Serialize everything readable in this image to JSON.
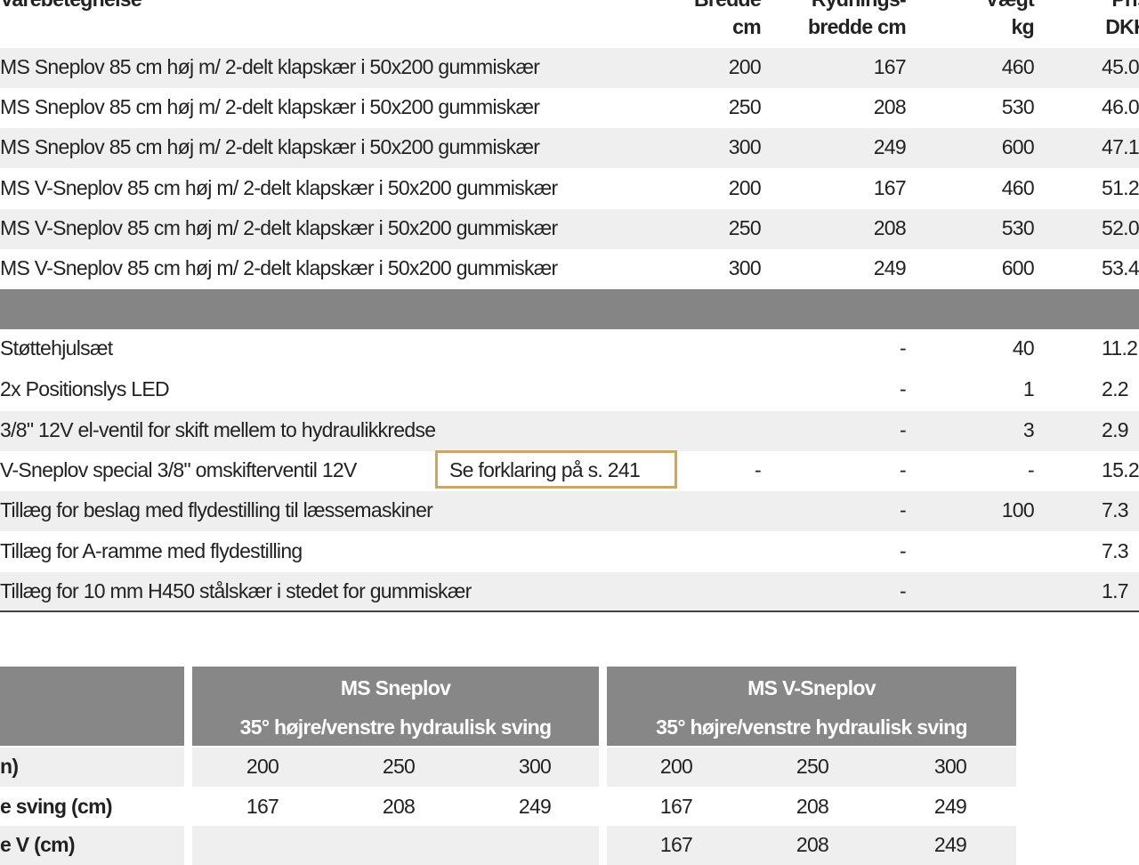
{
  "main_table": {
    "headers": {
      "name": "Varebetegnelse",
      "width": [
        "Bredde",
        "cm"
      ],
      "clearing": [
        "Rydnings-",
        "bredde cm"
      ],
      "weight": [
        "Vægt",
        "kg"
      ],
      "price": [
        "Pris",
        "DKK"
      ]
    },
    "products": [
      {
        "name": "MS Sneplov 85 cm høj m/ 2-delt klapskær i 50x200 gummiskær",
        "width": "200",
        "clearing": "167",
        "weight": "460",
        "price": "45.0"
      },
      {
        "name": "MS Sneplov 85 cm høj m/ 2-delt klapskær i 50x200 gummiskær",
        "width": "250",
        "clearing": "208",
        "weight": "530",
        "price": "46.0"
      },
      {
        "name": "MS Sneplov 85 cm høj m/ 2-delt klapskær i 50x200 gummiskær",
        "width": "300",
        "clearing": "249",
        "weight": "600",
        "price": "47.1"
      },
      {
        "name": "MS V-Sneplov 85 cm høj m/ 2-delt klapskær i 50x200 gummiskær",
        "width": "200",
        "clearing": "167",
        "weight": "460",
        "price": "51.2"
      },
      {
        "name": "MS V-Sneplov 85 cm høj m/ 2-delt klapskær i 50x200 gummiskær",
        "width": "250",
        "clearing": "208",
        "weight": "530",
        "price": "52.0"
      },
      {
        "name": "MS V-Sneplov 85 cm høj m/ 2-delt klapskær i 50x200 gummiskær",
        "width": "300",
        "clearing": "249",
        "weight": "600",
        "price": "53.4"
      }
    ],
    "accessories": [
      {
        "name": "Støttehjulsæt",
        "width": "",
        "clearing": "-",
        "weight": "40",
        "price": "11.2"
      },
      {
        "name": "2x Positionslys LED",
        "width": "",
        "clearing": "-",
        "weight": "1",
        "price": "2.2"
      },
      {
        "name": "3/8\" 12V el-ventil for skift mellem to hydraulikkredse",
        "width": "",
        "clearing": "-",
        "weight": "3",
        "price": "2.9"
      },
      {
        "name": "V-Sneplov special 3/8\" omskifterventil 12V",
        "note": "Se forklaring på s. 241",
        "width": "-",
        "clearing": "-",
        "weight": "-",
        "price": "15.2"
      },
      {
        "name": "Tillæg for beslag med flydestilling til læssemaskiner",
        "width": "",
        "clearing": "-",
        "weight": "100",
        "price": "7.3"
      },
      {
        "name": "Tillæg for A-ramme med flydestilling",
        "width": "",
        "clearing": "-",
        "weight": "",
        "price": "7.3"
      },
      {
        "name": "Tillæg for 10 mm H450 stålskær i stedet for gummiskær",
        "width": "",
        "clearing": "-",
        "weight": "",
        "price": "1.7"
      }
    ]
  },
  "spec_table": {
    "groups": [
      {
        "title": "MS Sneplov",
        "subtitle": "35° højre/venstre hydraulisk sving"
      },
      {
        "title": "MS V-Sneplov",
        "subtitle": "35° højre/venstre hydraulisk sving"
      }
    ],
    "rows": [
      {
        "label": "n)",
        "ms": [
          "200",
          "250",
          "300"
        ],
        "v": [
          "200",
          "250",
          "300"
        ]
      },
      {
        "label": "e sving (cm)",
        "ms": [
          "167",
          "208",
          "249"
        ],
        "v": [
          "167",
          "208",
          "249"
        ]
      },
      {
        "label": "e V (cm)",
        "ms": [
          "",
          "",
          ""
        ],
        "v": [
          "167",
          "208",
          "249"
        ]
      }
    ]
  }
}
